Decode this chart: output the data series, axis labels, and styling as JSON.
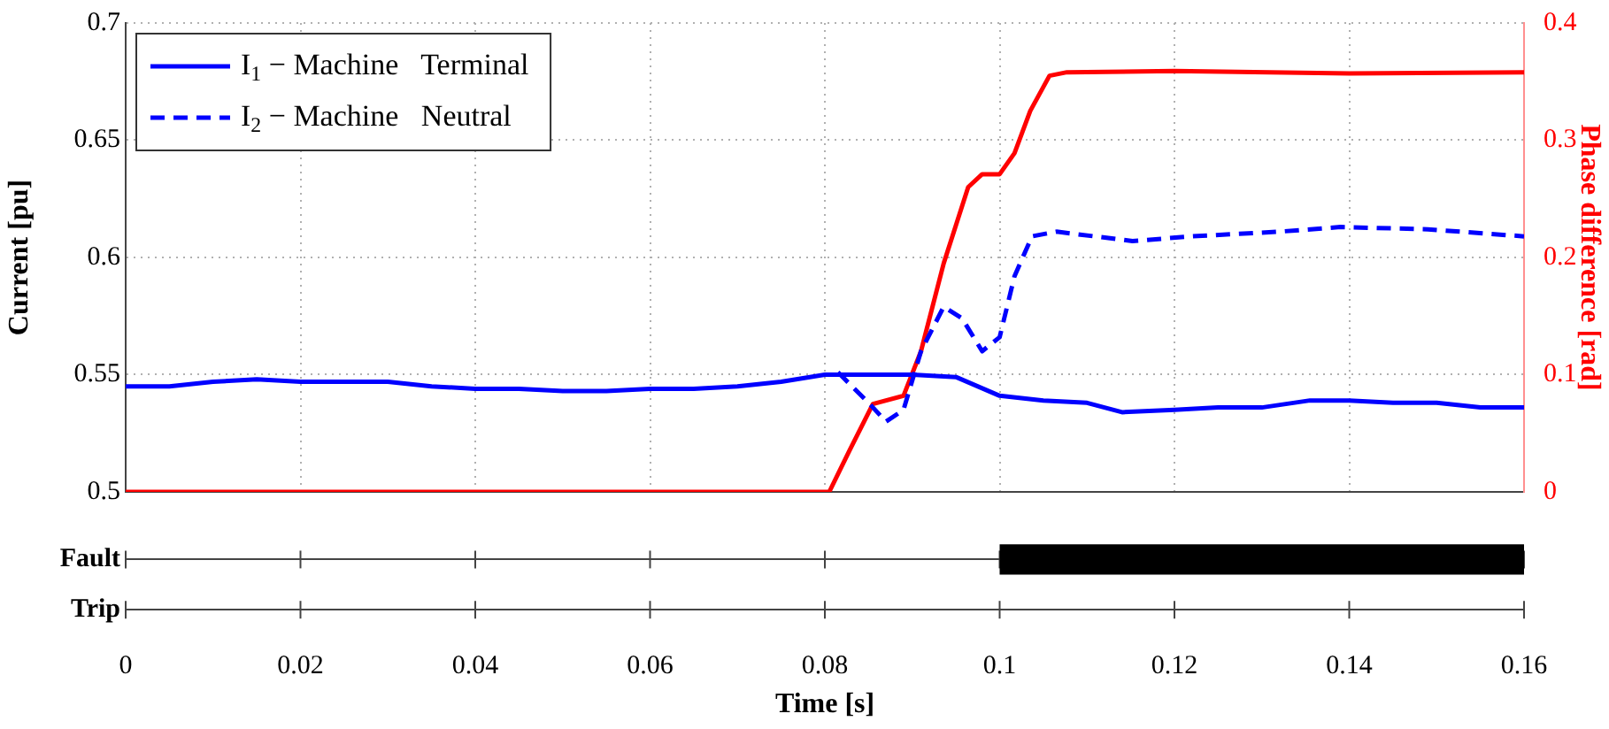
{
  "chart_data": [
    {
      "type": "line",
      "ylabel": "Current [pu]",
      "y2label": "Phase difference [rad]",
      "xlim": [
        0,
        0.16
      ],
      "xticks": [
        0,
        0.02,
        0.04,
        0.06,
        0.08,
        0.1,
        0.12,
        0.14,
        0.16
      ],
      "ylim": [
        0.5,
        0.7
      ],
      "yticks": [
        0.5,
        0.55,
        0.6,
        0.65,
        0.7
      ],
      "y2lim": [
        0,
        0.4
      ],
      "y2ticks": [
        0,
        0.1,
        0.2,
        0.3,
        0.4
      ],
      "grid": true,
      "legend": "top left",
      "tick_labels": "y",
      "series": [
        {
          "name": "I$_{1}$ − Machine   Terminal",
          "color": "#0000ff",
          "line_style": "solid",
          "x": [
            0,
            0.005,
            0.01,
            0.015,
            0.02,
            0.025,
            0.03,
            0.035,
            0.04,
            0.045,
            0.05,
            0.055,
            0.06,
            0.065,
            0.07,
            0.075,
            0.08,
            0.085,
            0.09,
            0.095,
            0.1,
            0.105,
            0.11,
            0.114,
            0.12,
            0.125,
            0.13,
            0.1355,
            0.14,
            0.145,
            0.15,
            0.155,
            0.16
          ],
          "values": [
            0.545,
            0.545,
            0.547,
            0.548,
            0.547,
            0.547,
            0.547,
            0.545,
            0.544,
            0.544,
            0.543,
            0.543,
            0.544,
            0.544,
            0.545,
            0.547,
            0.55,
            0.55,
            0.55,
            0.549,
            0.541,
            0.539,
            0.538,
            0.534,
            0.535,
            0.536,
            0.536,
            0.539,
            0.539,
            0.538,
            0.538,
            0.536,
            0.536
          ]
        },
        {
          "name": "I$_{2}$ − Machine   Neutral",
          "color": "#0000ff",
          "line_style": "dashed",
          "x": [
            0.0815,
            0.085,
            0.087,
            0.089,
            0.091,
            0.0936,
            0.0957,
            0.098,
            0.1,
            0.1017,
            0.1037,
            0.1065,
            0.1152,
            0.122,
            0.132,
            0.139,
            0.149,
            0.16
          ],
          "values": [
            0.551,
            0.538,
            0.53,
            0.535,
            0.56,
            0.579,
            0.574,
            0.56,
            0.566,
            0.592,
            0.609,
            0.611,
            0.607,
            0.609,
            0.611,
            0.613,
            0.612,
            0.609
          ]
        },
        {
          "color": "#ff0000",
          "axis": "y2",
          "line_style": "solid",
          "x": [
            0,
            0.08,
            0.0805,
            0.0828,
            0.0855,
            0.089,
            0.091,
            0.0936,
            0.0964,
            0.098,
            0.1,
            0.1017,
            0.1035,
            0.1057,
            0.1077,
            0.12,
            0.14,
            0.16
          ],
          "values": [
            0,
            0,
            0,
            0.035,
            0.075,
            0.082,
            0.12,
            0.195,
            0.26,
            0.271,
            0.271,
            0.289,
            0.325,
            0.355,
            0.358,
            0.359,
            0.357,
            0.358
          ]
        }
      ]
    },
    {
      "type": "bar",
      "orientation": "horizontal",
      "categories": [
        "Fault",
        "Trip"
      ],
      "base": [
        0.1,
        null
      ],
      "values": [
        0.06,
        null
      ],
      "color": "#000000",
      "xlim": [
        0,
        0.16
      ],
      "xticks": [
        0,
        0.02,
        0.04,
        0.06,
        0.08,
        0.1,
        0.12,
        0.14,
        0.16
      ],
      "xlabel": "Time [s]"
    }
  ]
}
